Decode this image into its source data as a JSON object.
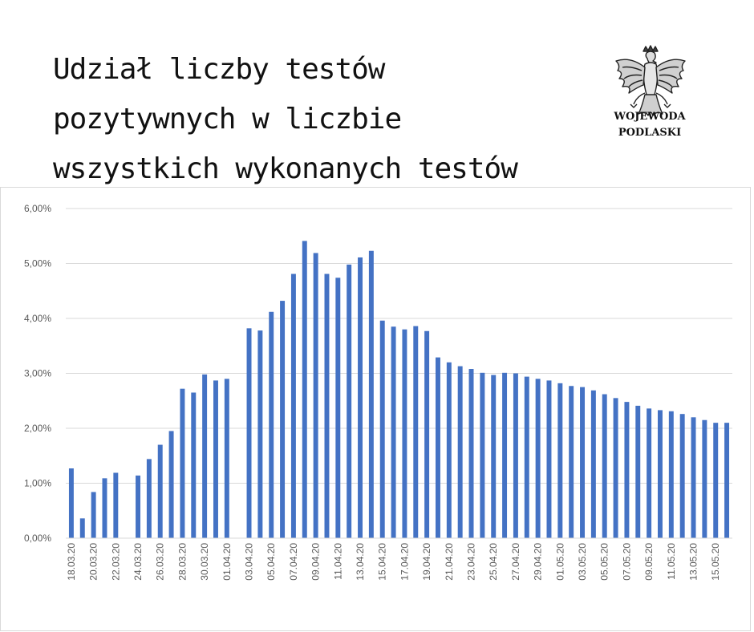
{
  "header": {
    "title_lines": [
      "Udział liczby testów",
      "pozytywnych w liczbie",
      "wszystkich wykonanych testów"
    ],
    "logo": {
      "icon": "eagle-emblem-icon",
      "lines": [
        "WOJEWODA",
        "PODLASKI"
      ]
    }
  },
  "colors": {
    "bar": "#4472c4",
    "grid": "#d9d9d9",
    "axis_text": "#595959"
  },
  "chart_data": {
    "type": "bar",
    "title": "",
    "xlabel": "",
    "ylabel": "",
    "ylim": [
      0,
      0.06
    ],
    "y_ticks": [
      0,
      0.01,
      0.02,
      0.03,
      0.04,
      0.05,
      0.06
    ],
    "y_tick_labels": [
      "0,00%",
      "1,00%",
      "2,00%",
      "3,00%",
      "4,00%",
      "5,00%",
      "6,00%"
    ],
    "grid": true,
    "legend": "none",
    "x_tick_labels": [
      "18.03.20",
      "20.03.20",
      "22.03.20",
      "24.03.20",
      "26.03.20",
      "28.03.20",
      "30.03.20",
      "01.04.20",
      "03.04.20",
      "05.04.20",
      "07.04.20",
      "09.04.20",
      "11.04.20",
      "13.04.20",
      "15.04.20",
      "17.04.20",
      "19.04.20",
      "21.04.20",
      "23.04.20",
      "25.04.20",
      "27.04.20",
      "29.04.20",
      "01.05.20",
      "03.05.20",
      "05.05.20",
      "07.05.20",
      "09.05.20",
      "11.05.20",
      "13.05.20",
      "15.05.20"
    ],
    "categories": [
      "18.03.20",
      "19.03.20",
      "20.03.20",
      "21.03.20",
      "22.03.20",
      "23.03.20",
      "24.03.20",
      "25.03.20",
      "26.03.20",
      "27.03.20",
      "28.03.20",
      "29.03.20",
      "30.03.20",
      "31.03.20",
      "01.04.20",
      "02.04.20",
      "03.04.20",
      "04.04.20",
      "05.04.20",
      "06.04.20",
      "07.04.20",
      "08.04.20",
      "09.04.20",
      "10.04.20",
      "11.04.20",
      "12.04.20",
      "13.04.20",
      "14.04.20",
      "15.04.20",
      "16.04.20",
      "17.04.20",
      "18.04.20",
      "19.04.20",
      "20.04.20",
      "21.04.20",
      "22.04.20",
      "23.04.20",
      "24.04.20",
      "25.04.20",
      "26.04.20",
      "27.04.20",
      "28.04.20",
      "29.04.20",
      "30.04.20",
      "01.05.20",
      "02.05.20",
      "03.05.20",
      "04.05.20",
      "05.05.20",
      "06.05.20",
      "07.05.20",
      "08.05.20",
      "09.05.20",
      "10.05.20",
      "11.05.20",
      "12.05.20",
      "13.05.20",
      "14.05.20",
      "15.05.20",
      "16.05.20"
    ],
    "values": [
      0.0127,
      0.0036,
      0.0084,
      0.0109,
      0.0119,
      null,
      0.0114,
      0.0144,
      0.017,
      0.0195,
      0.0272,
      0.0265,
      0.0298,
      0.0287,
      0.029,
      null,
      0.0382,
      0.0378,
      0.0412,
      0.0432,
      0.0481,
      0.0541,
      0.0519,
      0.0481,
      0.0474,
      0.0498,
      0.0511,
      0.0523,
      0.0396,
      0.0385,
      0.038,
      0.0386,
      0.0377,
      0.0329,
      0.032,
      0.0313,
      0.0308,
      0.0301,
      0.0297,
      0.0301,
      0.03,
      0.0294,
      0.029,
      0.0287,
      0.0282,
      0.0277,
      0.0275,
      0.0269,
      0.0262,
      0.0255,
      0.0248,
      0.0241,
      0.0236,
      0.0233,
      0.0231,
      0.0226,
      0.022,
      0.0215,
      0.021,
      0.021
    ]
  }
}
